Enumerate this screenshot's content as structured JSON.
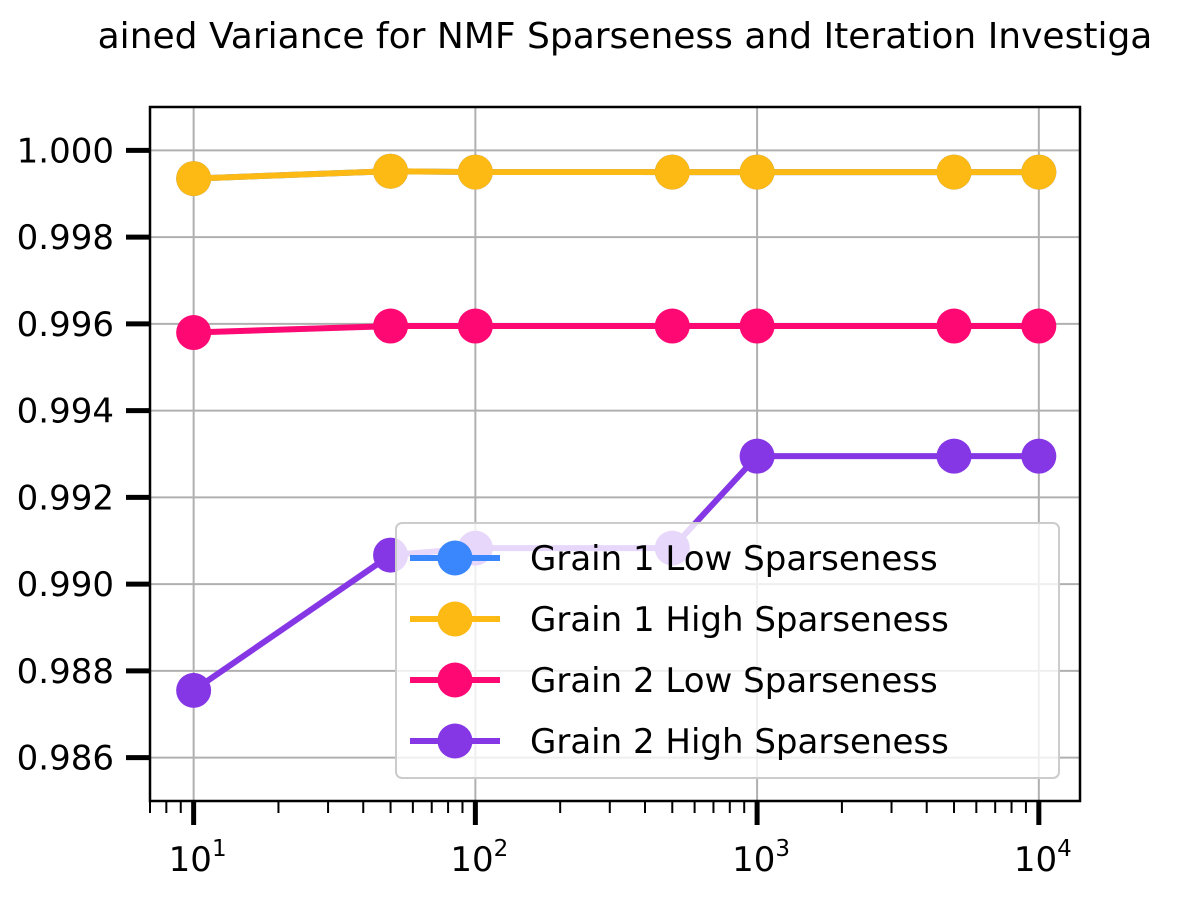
{
  "chart_data": {
    "type": "line",
    "title": "ained Variance for NMF Sparseness and Iteration Investiga",
    "xscale": "log",
    "x": [
      10,
      50,
      100,
      500,
      1000,
      5000,
      10000
    ],
    "xlim": [
      7,
      14000
    ],
    "ylim": [
      0.985,
      1.001
    ],
    "x_ticks": [
      {
        "value": 10,
        "base": "10",
        "exp": "1"
      },
      {
        "value": 100,
        "base": "10",
        "exp": "2"
      },
      {
        "value": 1000,
        "base": "10",
        "exp": "3"
      },
      {
        "value": 10000,
        "base": "10",
        "exp": "4"
      }
    ],
    "y_ticks": [
      {
        "value": 1.0,
        "label": "1.000"
      },
      {
        "value": 0.998,
        "label": "0.998"
      },
      {
        "value": 0.996,
        "label": "0.996"
      },
      {
        "value": 0.994,
        "label": "0.994"
      },
      {
        "value": 0.992,
        "label": "0.992"
      },
      {
        "value": 0.99,
        "label": "0.990"
      },
      {
        "value": 0.988,
        "label": "0.988"
      },
      {
        "value": 0.986,
        "label": "0.986"
      }
    ],
    "grid": true,
    "legend_position": "lower-right",
    "series": [
      {
        "name": "Grain 1 Low Sparseness",
        "color": "#3a87fd",
        "values": [
          0.99935,
          0.99952,
          0.9995,
          0.9995,
          0.9995,
          0.9995,
          0.9995
        ]
      },
      {
        "name": "Grain 1 High Sparseness",
        "color": "#fdb914",
        "values": [
          0.99935,
          0.99952,
          0.9995,
          0.9995,
          0.9995,
          0.9995,
          0.9995
        ]
      },
      {
        "name": "Grain 2 Low Sparseness",
        "color": "#fe0874",
        "values": [
          0.9958,
          0.99595,
          0.99595,
          0.99595,
          0.99595,
          0.99595,
          0.99595
        ]
      },
      {
        "name": "Grain 2 High Sparseness",
        "color": "#8637e5",
        "values": [
          0.98755,
          0.99067,
          0.99083,
          0.99083,
          0.99295,
          0.99295,
          0.99295
        ]
      }
    ]
  }
}
